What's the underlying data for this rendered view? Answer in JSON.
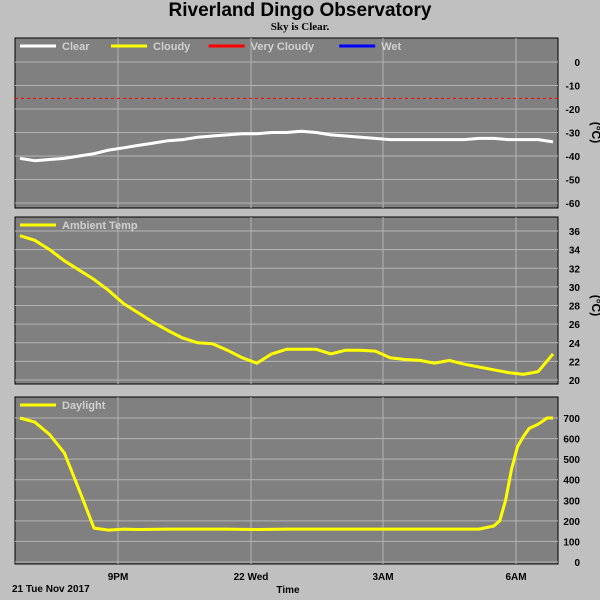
{
  "title": "Riverland Dingo Observatory",
  "subtitle": "Sky is Clear.",
  "colors": {
    "background": "#c0c0c0",
    "panel": "#808080",
    "grid": "#b4b4b4",
    "clear": "#ffffff",
    "cloudy": "#ffff00",
    "very_cloudy": "#ff0000",
    "wet": "#0000ff"
  },
  "chart_data": [
    {
      "type": "line",
      "panel": "sky",
      "unit_label": "(°C)",
      "legend": [
        {
          "name": "Clear",
          "color": "#ffffff"
        },
        {
          "name": "Cloudy",
          "color": "#ffff00"
        },
        {
          "name": "Very Cloudy",
          "color": "#ff0000"
        },
        {
          "name": "Wet",
          "color": "#0000ff"
        }
      ],
      "ylim": [
        -60,
        0
      ],
      "yticks": [
        0,
        -10,
        -20,
        -30,
        -40,
        -50,
        -60
      ],
      "threshold": -15.5,
      "x": [
        0,
        0.5,
        1,
        1.5,
        2,
        2.5,
        3,
        3.5,
        4,
        4.5,
        5,
        5.5,
        6,
        6.5,
        7,
        7.5,
        8,
        8.5,
        9,
        9.5,
        10,
        10.5,
        11,
        11.5,
        12,
        12.5,
        13,
        13.5,
        14,
        14.5,
        15,
        15.5,
        16,
        16.5,
        17,
        17.5,
        18
      ],
      "values": [
        -41,
        -42,
        -41.5,
        -41,
        -40,
        -39,
        -37.5,
        -36.5,
        -35.5,
        -34.5,
        -33.5,
        -33,
        -32,
        -31.5,
        -31,
        -30.5,
        -30.5,
        -30,
        -30,
        -29.5,
        -30,
        -31,
        -31.5,
        -32,
        -32.5,
        -33,
        -33,
        -33,
        -33,
        -33,
        -33,
        -32.5,
        -32.5,
        -33,
        -33,
        -33,
        -34
      ]
    },
    {
      "type": "line",
      "panel": "ambient",
      "unit_label": "(°C)",
      "legend": [
        {
          "name": "Ambient Temp",
          "color": "#ffff00"
        }
      ],
      "ylim": [
        19.5,
        37
      ],
      "yticks": [
        20,
        22,
        24,
        26,
        28,
        30,
        32,
        34,
        36
      ],
      "x": [
        0,
        0.5,
        1,
        1.5,
        2,
        2.5,
        3,
        3.5,
        4,
        4.5,
        5,
        5.5,
        6,
        6.5,
        7,
        7.5,
        8,
        8.5,
        9,
        9.5,
        10,
        10.5,
        11,
        11.5,
        12,
        12.5,
        13,
        13.5,
        14,
        14.5,
        15,
        15.5,
        16,
        16.5,
        17,
        17.5,
        18
      ],
      "values": [
        35.5,
        35,
        34,
        32.8,
        31.8,
        30.8,
        29.6,
        28.2,
        27.2,
        26.2,
        25.3,
        24.5,
        24,
        23.9,
        23.2,
        22.4,
        21.8,
        22.8,
        23.3,
        23.3,
        23.3,
        22.8,
        23.2,
        23.2,
        23.1,
        22.4,
        22.2,
        22.1,
        21.8,
        22.1,
        21.7,
        21.4,
        21.1,
        20.8,
        20.6,
        20.9,
        22.8
      ]
    },
    {
      "type": "line",
      "panel": "daylight",
      "legend": [
        {
          "name": "Daylight",
          "color": "#ffff00"
        }
      ],
      "ylim": [
        0,
        750
      ],
      "yticks": [
        0,
        100,
        200,
        300,
        400,
        500,
        600,
        700
      ],
      "x": [
        0,
        0.5,
        1,
        1.5,
        2,
        2.5,
        3,
        3.5,
        4,
        5,
        6,
        7,
        8,
        9,
        10,
        11,
        12,
        13,
        14,
        15,
        15.5,
        16,
        16.2,
        16.4,
        16.6,
        16.8,
        17,
        17.2,
        17.5,
        17.8,
        18
      ],
      "values": [
        700,
        680,
        620,
        530,
        350,
        165,
        155,
        160,
        158,
        160,
        160,
        160,
        158,
        160,
        160,
        160,
        160,
        160,
        160,
        160,
        160,
        175,
        200,
        300,
        450,
        560,
        610,
        650,
        670,
        700,
        700
      ]
    }
  ],
  "x_axis": {
    "ticks": [
      {
        "x": 4.5,
        "label": "9PM"
      },
      {
        "x": 10.5,
        "label": "22 Wed"
      },
      {
        "x": 16.5,
        "label": "3AM"
      },
      {
        "x": 22.5,
        "label": "6AM"
      }
    ],
    "start_label": "21 Tue Nov 2017",
    "xlabel": "Time"
  }
}
